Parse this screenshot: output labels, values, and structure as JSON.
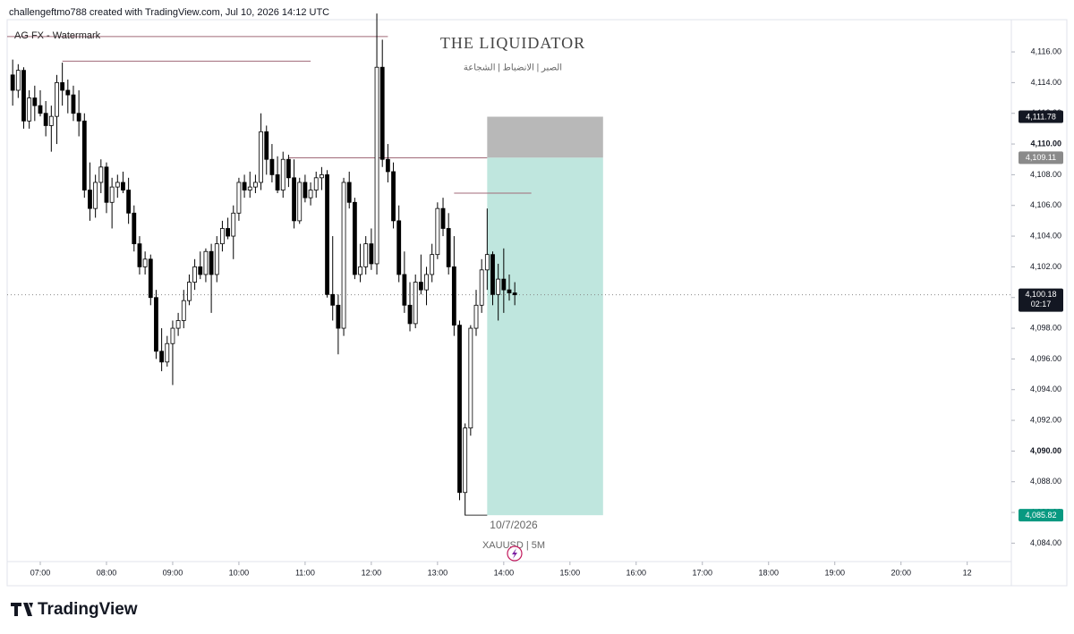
{
  "header": "challengeftmo788 created with TradingView.com, Jul 10, 2026 14:12 UTC",
  "logo": "TradingView",
  "chart_data": {
    "type": "candlestick",
    "watermark": "AG FX - Watermark",
    "title": "THE LIQUIDATOR",
    "subtitle": "الصبر | الانضباط | الشجاعة",
    "date_label": "10/7/2026",
    "symbol_label": "XAUUSD | 5M",
    "up_color": "#ffffff",
    "down_color": "#000000",
    "x": [
      "06:35",
      "06:40",
      "06:45",
      "06:50",
      "06:55",
      "07:00",
      "07:05",
      "07:10",
      "07:15",
      "07:20",
      "07:25",
      "07:30",
      "07:35",
      "07:40",
      "07:45",
      "07:50",
      "07:55",
      "08:00",
      "08:05",
      "08:10",
      "08:15",
      "08:20",
      "08:25",
      "08:30",
      "08:35",
      "08:40",
      "08:45",
      "08:50",
      "08:55",
      "09:00",
      "09:05",
      "09:10",
      "09:15",
      "09:20",
      "09:25",
      "09:30",
      "09:35",
      "09:40",
      "09:45",
      "09:50",
      "09:55",
      "10:00",
      "10:05",
      "10:10",
      "10:15",
      "10:20",
      "10:25",
      "10:30",
      "10:35",
      "10:40",
      "10:45",
      "10:50",
      "10:55",
      "11:00",
      "11:05",
      "11:10",
      "11:15",
      "11:20",
      "11:25",
      "11:30",
      "11:35",
      "11:40",
      "11:45",
      "11:50",
      "11:55",
      "12:00",
      "12:05",
      "12:10",
      "12:15",
      "12:20",
      "12:25",
      "12:30",
      "12:35",
      "12:40",
      "12:45",
      "12:50",
      "12:55",
      "13:00",
      "13:05",
      "13:10",
      "13:15",
      "13:20",
      "13:25",
      "13:30",
      "13:35",
      "13:40",
      "13:45",
      "13:50",
      "13:55",
      "14:00",
      "14:05",
      "14:10"
    ],
    "open": [
      4114.5,
      4113.5,
      4114.8,
      4111.5,
      4113,
      4112.5,
      4112,
      4111.2,
      4111.8,
      4114,
      4113.5,
      4113.2,
      4112,
      4111.5,
      4107,
      4105.8,
      4107.5,
      4108.5,
      4106.2,
      4107.2,
      4107.5,
      4107,
      4105.5,
      4103.5,
      4102,
      4102.5,
      4100,
      4096.5,
      4095.8,
      4097,
      4098,
      4098.5,
      4099.8,
      4101,
      4102,
      4101.5,
      4103,
      4101.5,
      4103.5,
      4104.5,
      4104,
      4105.5,
      4107.5,
      4107,
      4107.2,
      4107.5,
      4110.8,
      4109,
      4108,
      4107,
      4109,
      4107.8,
      4105,
      4107.5,
      4106.5,
      4107,
      4107.8,
      4108,
      4100.2,
      4099.5,
      4098,
      4107.5,
      4106.2,
      4101.5,
      4102,
      4103.5,
      4102.2,
      4115,
      4109,
      4108.2,
      4105,
      4101.5,
      4099.5,
      4098.3,
      4101,
      4100.5,
      4101.5,
      4102.8,
      4105.8,
      4104.5,
      4102,
      4098.2,
      4087.3,
      4091.5,
      4098,
      4099.5,
      4101.8,
      4102.8,
      4100.2,
      4101.2,
      4100.5,
      4100.3
    ],
    "high": [
      4115.5,
      4115.2,
      4115,
      4113.5,
      4113.8,
      4113.5,
      4112.8,
      4112.5,
      4114.5,
      4115.3,
      4114.2,
      4113.8,
      4113.5,
      4112,
      4108.8,
      4108,
      4109,
      4108.8,
      4107.8,
      4108,
      4108.2,
      4107.8,
      4106,
      4104,
      4103,
      4102.8,
      4100.5,
      4098,
      4097.5,
      4098.5,
      4099,
      4100.5,
      4101.5,
      4102.5,
      4103,
      4103.2,
      4103.5,
      4104,
      4105,
      4105.2,
      4106,
      4107.8,
      4108,
      4108.2,
      4108,
      4112,
      4111.2,
      4110,
      4109.2,
      4109.5,
      4109.3,
      4109,
      4107.8,
      4108,
      4107.5,
      4108.2,
      4108.5,
      4108.3,
      4104,
      4100.2,
      4107.8,
      4108.2,
      4106.5,
      4103.5,
      4104,
      4104.5,
      4118.5,
      4116.8,
      4110,
      4108.8,
      4106,
      4103,
      4101,
      4101.5,
      4102.8,
      4102,
      4103.5,
      4106.2,
      4106.5,
      4105.5,
      4104,
      4098.5,
      4091.8,
      4098.2,
      4100.5,
      4102.5,
      4105.8,
      4103,
      4102.2,
      4103.2,
      4101.5,
      4101
    ],
    "low": [
      4112.5,
      4113,
      4111,
      4111,
      4111.5,
      4111.8,
      4110.5,
      4109.5,
      4110,
      4112.5,
      4112,
      4111.5,
      4110.5,
      4106.5,
      4105,
      4105.2,
      4106.8,
      4105.5,
      4104.5,
      4106.5,
      4106.8,
      4104.8,
      4103,
      4101.5,
      4101.5,
      4099.5,
      4096,
      4095.2,
      4095.5,
      4094.3,
      4097.5,
      4098,
      4099.5,
      4100.5,
      4101.2,
      4101,
      4099,
      4101,
      4103,
      4103.8,
      4102.5,
      4105,
      4106.5,
      4106.5,
      4106.8,
      4107,
      4108,
      4107.5,
      4106.8,
      4106.5,
      4107.2,
      4104.5,
      4104.8,
      4106.2,
      4106,
      4106.5,
      4107,
      4100,
      4098.5,
      4096.3,
      4097.5,
      4105.8,
      4101.2,
      4101,
      4101.5,
      4101.8,
      4101.5,
      4108.5,
      4107.5,
      4104.5,
      4101,
      4099,
      4097.8,
      4098,
      4100.2,
      4099.5,
      4101,
      4102.5,
      4104,
      4101.5,
      4097.5,
      4086.8,
      4085.8,
      4091,
      4097.5,
      4099,
      4100.5,
      4099.5,
      4098.5,
      4099,
      4099.8,
      4099.5
    ],
    "close": [
      4113.5,
      4114.8,
      4111.5,
      4113,
      4112.5,
      4112,
      4111.2,
      4111.8,
      4114,
      4113.5,
      4113.2,
      4112,
      4111.5,
      4107,
      4105.8,
      4107.5,
      4108.5,
      4106.2,
      4107.2,
      4107.5,
      4107,
      4105.5,
      4103.5,
      4102,
      4102.5,
      4100,
      4096.5,
      4095.8,
      4097,
      4098,
      4098.5,
      4099.8,
      4101,
      4102,
      4101.5,
      4103,
      4101.5,
      4103.5,
      4104.5,
      4104,
      4105.5,
      4107.5,
      4107,
      4107.2,
      4107.5,
      4110.8,
      4109,
      4108,
      4107,
      4109,
      4107.8,
      4105,
      4107.5,
      4106.5,
      4107,
      4107.8,
      4108,
      4100.2,
      4099.5,
      4098,
      4107.5,
      4106.2,
      4101.5,
      4102,
      4103.5,
      4102.2,
      4115,
      4109,
      4108.2,
      4105,
      4101.5,
      4099.5,
      4098.3,
      4101,
      4100.5,
      4101.5,
      4102.8,
      4105.8,
      4104.5,
      4102,
      4098.2,
      4087.3,
      4091.5,
      4098,
      4099.5,
      4101.8,
      4102.8,
      4100.2,
      4101.2,
      4100.5,
      4100.3,
      4100.18
    ],
    "xlim": [
      "06:30",
      "21:40"
    ],
    "xticks": [
      "07:00",
      "08:00",
      "09:00",
      "10:00",
      "11:00",
      "12:00",
      "13:00",
      "14:00",
      "15:00",
      "16:00",
      "17:00",
      "18:00",
      "19:00",
      "20:00",
      {
        "value": "21:00",
        "label": "12"
      }
    ],
    "ylim": [
      4082.8,
      4118.1
    ],
    "yticks": [
      {
        "value": 4084,
        "label": "4,084.00"
      },
      {
        "value": 4086,
        "label": "4,086.00"
      },
      {
        "value": 4088,
        "label": "4,088.00"
      },
      {
        "value": 4090,
        "label": "4,090.00"
      },
      {
        "value": 4092,
        "label": "4,092.00"
      },
      {
        "value": 4094,
        "label": "4,094.00"
      },
      {
        "value": 4096,
        "label": "4,096.00"
      },
      {
        "value": 4098,
        "label": "4,098.00"
      },
      {
        "value": 4100,
        "label": "4,100.00"
      },
      {
        "value": 4102,
        "label": "4,102.00"
      },
      {
        "value": 4104,
        "label": "4,104.00"
      },
      {
        "value": 4106,
        "label": "4,106.00"
      },
      {
        "value": 4108,
        "label": "4,108.00"
      },
      {
        "value": 4110,
        "label": "4,110.00"
      },
      {
        "value": 4112,
        "label": "4,112.00"
      },
      {
        "value": 4114,
        "label": "4,114.00"
      },
      {
        "value": 4116,
        "label": "4,116.00"
      }
    ],
    "levels": [
      {
        "value": 4117,
        "start": "06:30",
        "end": "12:15"
      },
      {
        "value": 4115.4,
        "start": "07:20",
        "end": "11:05"
      },
      {
        "value": 4109.1,
        "start": "10:45",
        "end": "13:45"
      },
      {
        "value": 4106.8,
        "start": "13:15",
        "end": "14:25"
      },
      {
        "value": 4085.82,
        "start": "13:25",
        "end": "13:45"
      }
    ],
    "position": {
      "start": "13:45",
      "end": "15:30",
      "stop": {
        "value": 4111.78,
        "label": "4,111.78"
      },
      "entry": {
        "value": 4109.11,
        "label": "4,109.11"
      },
      "target": {
        "value": 4085.82,
        "label": "4,085.82"
      }
    },
    "last_price": {
      "value": 4100.18,
      "label": "4,100.18"
    },
    "countdown": "02:17"
  }
}
